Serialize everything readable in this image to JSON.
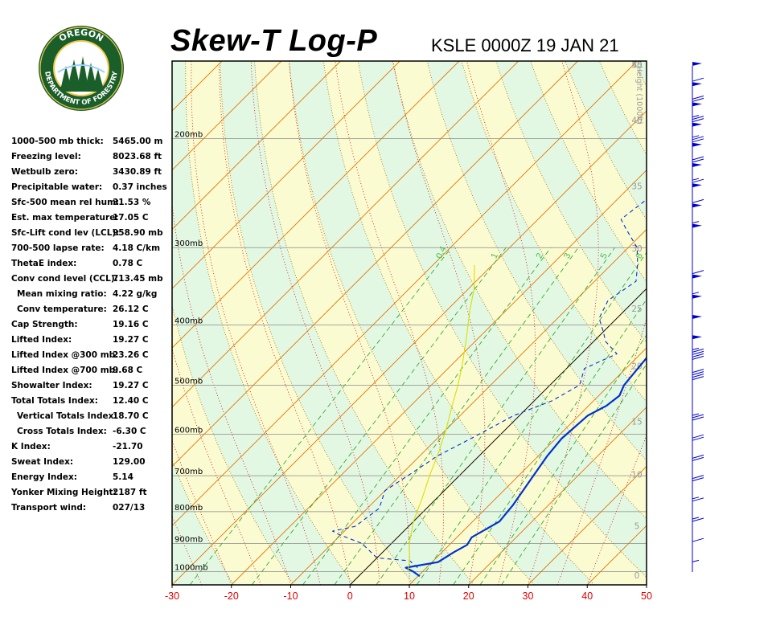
{
  "header": {
    "title": "Skew-T Log-P",
    "station": "KSLE 0000Z 19 JAN 21"
  },
  "logo": {
    "top_text": "OREGON",
    "bottom_text": "DEPARTMENT OF FORESTRY",
    "ring_color": "#1a5e2a",
    "inner_color": "#f3c74a"
  },
  "indices": [
    {
      "label": "1000-500 mb thick:",
      "value": "5465.00 m",
      "indent": false
    },
    {
      "label": "Freezing level:",
      "value": "8023.68 ft",
      "indent": false
    },
    {
      "label": "Wetbulb zero:",
      "value": "3430.89 ft",
      "indent": false
    },
    {
      "label": "Precipitable water:",
      "value": "0.37 inches",
      "indent": false
    },
    {
      "label": "Sfc-500 mean rel hum:",
      "value": "31.53 %",
      "indent": false
    },
    {
      "label": "Est. max temperature:",
      "value": "17.05 C",
      "indent": false
    },
    {
      "label": "Sfc-Lift cond lev (LCL):",
      "value": "958.90 mb",
      "indent": false
    },
    {
      "label": "700-500 lapse rate:",
      "value": "4.18 C/km",
      "indent": false
    },
    {
      "label": "ThetaE index:",
      "value": "0.78 C",
      "indent": false
    },
    {
      "label": "Conv cond level (CCL):",
      "value": "713.45 mb",
      "indent": false
    },
    {
      "label": "Mean mixing ratio:",
      "value": "4.22 g/kg",
      "indent": true
    },
    {
      "label": "Conv temperature:",
      "value": "26.12 C",
      "indent": true
    },
    {
      "label": "Cap Strength:",
      "value": "19.16 C",
      "indent": false
    },
    {
      "label": "Lifted Index:",
      "value": "19.27 C",
      "indent": false
    },
    {
      "label": "Lifted Index @300 mb:",
      "value": "23.26 C",
      "indent": false
    },
    {
      "label": "Lifted Index @700 mb:",
      "value": "9.68 C",
      "indent": false
    },
    {
      "label": "Showalter Index:",
      "value": "19.27 C",
      "indent": false
    },
    {
      "label": "Total Totals Index:",
      "value": "12.40 C",
      "indent": false
    },
    {
      "label": "Vertical Totals Index:",
      "value": "18.70 C",
      "indent": true
    },
    {
      "label": "Cross Totals Index:",
      "value": "-6.30 C",
      "indent": true
    },
    {
      "label": "K Index:",
      "value": "-21.70",
      "indent": false
    },
    {
      "label": "Sweat Index:",
      "value": "129.00",
      "indent": false
    },
    {
      "label": "Energy Index:",
      "value": "5.14",
      "indent": false
    },
    {
      "label": "Yonker Mixing Height:",
      "value": "2187 ft",
      "indent": false
    },
    {
      "label": "Transport wind:",
      "value": "027/13",
      "indent": false
    }
  ],
  "chart_data": {
    "type": "line",
    "chart_kind": "skew-t log-p",
    "xlabel": "",
    "ylabel": "",
    "xlim": [
      -30,
      50
    ],
    "x_ticks": [
      -30,
      -20,
      -10,
      0,
      10,
      20,
      30,
      40,
      50
    ],
    "pressure_range_mb": [
      1050,
      150
    ],
    "pressure_labels": [
      {
        "p": 200,
        "label": "200mb"
      },
      {
        "p": 300,
        "label": "300mb"
      },
      {
        "p": 400,
        "label": "400mb"
      },
      {
        "p": 500,
        "label": "500mb"
      },
      {
        "p": 600,
        "label": "600mb"
      },
      {
        "p": 700,
        "label": "700mb"
      },
      {
        "p": 800,
        "label": "800mb"
      },
      {
        "p": 900,
        "label": "900mb"
      },
      {
        "p": 1000,
        "label": "1000mb"
      }
    ],
    "height_axis": {
      "label": "Height (1000ft)",
      "ticks": [
        0,
        5,
        10,
        15,
        20,
        25,
        30,
        35,
        40,
        45,
        50
      ]
    },
    "mixing_ratio_labels": [
      "0.4",
      "1",
      "2",
      "3",
      "5",
      "8"
    ],
    "background_colors": {
      "dry_adiabat_band": "#fbfbd2",
      "alt_band": "#e3f8e3",
      "isotherm": "#e07400",
      "dry_adiabat": "#a06800",
      "moist_adiabat": "#cc0000",
      "mixing_ratio": "#33aa33"
    },
    "series": [
      {
        "color": "#0033cc",
        "style": "solid",
        "points": [
          {
            "t": 10.3,
            "p": 1017
          },
          {
            "t": 8.5,
            "p": 1000
          },
          {
            "t": 6.5,
            "p": 985
          },
          {
            "t": 11.0,
            "p": 965
          },
          {
            "t": 12.0,
            "p": 930
          },
          {
            "t": 13.0,
            "p": 905
          },
          {
            "t": 12.5,
            "p": 880
          },
          {
            "t": 14.5,
            "p": 830
          },
          {
            "t": 14.0,
            "p": 780
          },
          {
            "t": 12.5,
            "p": 700
          },
          {
            "t": 11.5,
            "p": 650
          },
          {
            "t": 11.0,
            "p": 610
          },
          {
            "t": 11.5,
            "p": 560
          },
          {
            "t": 13.0,
            "p": 540
          },
          {
            "t": 13.5,
            "p": 520
          },
          {
            "t": 12.5,
            "p": 500
          },
          {
            "t": 12.0,
            "p": 470
          },
          {
            "t": 11.5,
            "p": 440
          },
          {
            "t": 11.5,
            "p": 400
          },
          {
            "t": 10.0,
            "p": 360
          },
          {
            "t": 7.0,
            "p": 320
          },
          {
            "t": 5.0,
            "p": 290
          },
          {
            "t": 3.0,
            "p": 270
          },
          {
            "t": 3.5,
            "p": 260
          },
          {
            "t": 1.5,
            "p": 240
          },
          {
            "t": -0.5,
            "p": 220
          },
          {
            "t": -3.5,
            "p": 200
          },
          {
            "t": -8.0,
            "p": 170
          },
          {
            "t": -6.0,
            "p": 165
          },
          {
            "t": -4.5,
            "p": 152
          }
        ]
      },
      {
        "color": "#0033cc",
        "style": "dashed",
        "points": [
          {
            "t": 8.5,
            "p": 985
          },
          {
            "t": 6.0,
            "p": 960
          },
          {
            "t": 0.0,
            "p": 950
          },
          {
            "t": -5.0,
            "p": 900
          },
          {
            "t": -10.5,
            "p": 870
          },
          {
            "t": -12.0,
            "p": 860
          },
          {
            "t": -9.0,
            "p": 845
          },
          {
            "t": -8.0,
            "p": 790
          },
          {
            "t": -10.0,
            "p": 740
          },
          {
            "t": -8.0,
            "p": 680
          },
          {
            "t": -7.0,
            "p": 650
          },
          {
            "t": -5.0,
            "p": 620
          },
          {
            "t": -3.0,
            "p": 590
          },
          {
            "t": -1.0,
            "p": 560
          },
          {
            "t": 3.0,
            "p": 530
          },
          {
            "t": 5.0,
            "p": 500
          },
          {
            "t": 3.0,
            "p": 470
          },
          {
            "t": 6.0,
            "p": 445
          },
          {
            "t": 2.0,
            "p": 425
          },
          {
            "t": 0.0,
            "p": 410
          },
          {
            "t": -3.0,
            "p": 390
          },
          {
            "t": -4.5,
            "p": 365
          },
          {
            "t": -3.0,
            "p": 340
          },
          {
            "t": -5.5,
            "p": 320
          },
          {
            "t": -8.5,
            "p": 300
          },
          {
            "t": -13.5,
            "p": 280
          },
          {
            "t": -16.0,
            "p": 270
          },
          {
            "t": -15.0,
            "p": 250
          },
          {
            "t": -18.0,
            "p": 230
          },
          {
            "t": -17.5,
            "p": 210
          },
          {
            "t": -16.0,
            "p": 195
          },
          {
            "t": -13.0,
            "p": 180
          },
          {
            "t": -13.5,
            "p": 170
          },
          {
            "t": -15.0,
            "p": 162
          },
          {
            "t": -13.0,
            "p": 155
          }
        ]
      },
      {
        "color": "#dddd00",
        "style": "solid",
        "points": [
          {
            "t": 7.5,
            "p": 1000
          },
          {
            "t": 6.0,
            "p": 960
          },
          {
            "t": 3.0,
            "p": 900
          },
          {
            "t": 0.0,
            "p": 830
          },
          {
            "t": -2.5,
            "p": 760
          },
          {
            "t": -5.0,
            "p": 700
          },
          {
            "t": -7.5,
            "p": 640
          },
          {
            "t": -10.0,
            "p": 590
          },
          {
            "t": -13.0,
            "p": 540
          },
          {
            "t": -15.5,
            "p": 500
          },
          {
            "t": -18.5,
            "p": 460
          },
          {
            "t": -22.0,
            "p": 420
          },
          {
            "t": -26.0,
            "p": 380
          },
          {
            "t": -29.0,
            "p": 350
          },
          {
            "t": -33.0,
            "p": 320
          }
        ]
      }
    ],
    "wind_barbs": [
      {
        "height_kft": 50,
        "dir": 300,
        "speed_kt": 50
      },
      {
        "height_kft": 48,
        "dir": 300,
        "speed_kt": 60
      },
      {
        "height_kft": 46,
        "dir": 300,
        "speed_kt": 70
      },
      {
        "height_kft": 44,
        "dir": 300,
        "speed_kt": 75
      },
      {
        "height_kft": 42,
        "dir": 300,
        "speed_kt": 75
      },
      {
        "height_kft": 40,
        "dir": 300,
        "speed_kt": 70
      },
      {
        "height_kft": 38,
        "dir": 300,
        "speed_kt": 65
      },
      {
        "height_kft": 36,
        "dir": 300,
        "speed_kt": 60
      },
      {
        "height_kft": 34,
        "dir": 300,
        "speed_kt": 55
      },
      {
        "height_kft": 29,
        "dir": 300,
        "speed_kt": 60
      },
      {
        "height_kft": 27,
        "dir": 300,
        "speed_kt": 55
      },
      {
        "height_kft": 25,
        "dir": 300,
        "speed_kt": 50
      },
      {
        "height_kft": 23,
        "dir": 300,
        "speed_kt": 50
      },
      {
        "height_kft": 21,
        "dir": 300,
        "speed_kt": 45
      },
      {
        "height_kft": 19,
        "dir": 300,
        "speed_kt": 40
      },
      {
        "height_kft": 15,
        "dir": 330,
        "speed_kt": 25
      },
      {
        "height_kft": 13,
        "dir": 330,
        "speed_kt": 20
      },
      {
        "height_kft": 11,
        "dir": 330,
        "speed_kt": 20
      },
      {
        "height_kft": 9,
        "dir": 330,
        "speed_kt": 20
      },
      {
        "height_kft": 7,
        "dir": 10,
        "speed_kt": 15
      },
      {
        "height_kft": 5,
        "dir": 20,
        "speed_kt": 15
      },
      {
        "height_kft": 3,
        "dir": 30,
        "speed_kt": 10
      },
      {
        "height_kft": 1,
        "dir": 40,
        "speed_kt": 5
      }
    ]
  }
}
